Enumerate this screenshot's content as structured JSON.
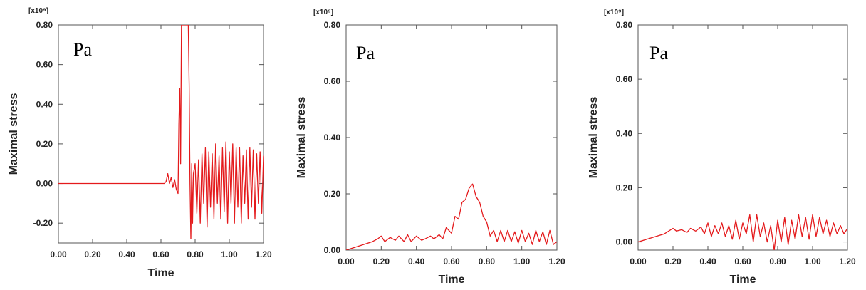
{
  "chart_data": [
    {
      "type": "line",
      "xlabel": "Time",
      "ylabel": "Maximal stress",
      "unit_annotation": "Pa",
      "multiplier": "[x10⁹]",
      "xlim": [
        0,
        1.2
      ],
      "ylim": [
        -0.3,
        0.8
      ],
      "xticks": [
        "0.00",
        "0.20",
        "0.40",
        "0.60",
        "0.80",
        "1.00",
        "1.20"
      ],
      "yticks": [
        "-0.20",
        "0.00",
        "0.20",
        "0.40",
        "0.60",
        "0.80"
      ],
      "grid": false,
      "series": [
        {
          "color": "#e41a1c",
          "x": [
            0.0,
            0.1,
            0.2,
            0.3,
            0.4,
            0.5,
            0.6,
            0.62,
            0.63,
            0.64,
            0.65,
            0.66,
            0.67,
            0.68,
            0.69,
            0.7,
            0.705,
            0.71,
            0.715,
            0.72,
            0.725,
            0.73,
            0.735,
            0.74,
            0.745,
            0.75,
            0.755,
            0.76,
            0.765,
            0.77,
            0.775,
            0.78,
            0.785,
            0.79,
            0.8,
            0.81,
            0.82,
            0.83,
            0.84,
            0.85,
            0.86,
            0.87,
            0.88,
            0.89,
            0.9,
            0.91,
            0.92,
            0.93,
            0.94,
            0.95,
            0.96,
            0.97,
            0.98,
            0.99,
            1.0,
            1.01,
            1.02,
            1.03,
            1.04,
            1.05,
            1.06,
            1.07,
            1.08,
            1.09,
            1.1,
            1.11,
            1.12,
            1.13,
            1.14,
            1.15,
            1.16,
            1.17,
            1.18,
            1.19,
            1.2
          ],
          "y": [
            0.0,
            0.0,
            0.0,
            0.0,
            0.0,
            0.0,
            0.0,
            0.0,
            0.01,
            0.05,
            0.0,
            0.03,
            -0.02,
            0.02,
            -0.03,
            -0.05,
            0.3,
            0.48,
            0.1,
            0.8,
            0.8,
            0.8,
            0.8,
            0.8,
            0.8,
            0.8,
            0.8,
            0.8,
            0.5,
            0.0,
            -0.28,
            0.1,
            -0.2,
            0.05,
            0.1,
            -0.15,
            0.12,
            -0.2,
            0.15,
            -0.1,
            0.18,
            -0.22,
            0.16,
            -0.12,
            0.15,
            -0.18,
            0.2,
            -0.1,
            0.14,
            -0.18,
            0.18,
            -0.14,
            0.21,
            -0.2,
            0.16,
            -0.1,
            0.2,
            -0.2,
            0.18,
            -0.12,
            0.18,
            -0.2,
            0.14,
            -0.1,
            0.17,
            -0.18,
            0.18,
            -0.12,
            0.17,
            -0.18,
            0.15,
            -0.1,
            0.16,
            -0.15,
            0.14
          ]
        }
      ]
    },
    {
      "type": "line",
      "xlabel": "Time",
      "ylabel": "Maximal stress",
      "unit_annotation": "Pa",
      "multiplier": "[x10⁹]",
      "xlim": [
        0,
        1.2
      ],
      "ylim": [
        0,
        0.8
      ],
      "xticks": [
        "0.00",
        "0.20",
        "0.40",
        "0.60",
        "0.80",
        "1.00",
        "1.20"
      ],
      "yticks": [
        "0.00",
        "0.20",
        "0.40",
        "0.60",
        "0.80"
      ],
      "grid": false,
      "series": [
        {
          "color": "#e41a1c",
          "x": [
            0.0,
            0.05,
            0.1,
            0.15,
            0.18,
            0.2,
            0.22,
            0.25,
            0.28,
            0.3,
            0.33,
            0.35,
            0.37,
            0.4,
            0.43,
            0.45,
            0.48,
            0.5,
            0.53,
            0.55,
            0.57,
            0.6,
            0.62,
            0.64,
            0.66,
            0.68,
            0.7,
            0.72,
            0.74,
            0.76,
            0.78,
            0.8,
            0.82,
            0.84,
            0.86,
            0.88,
            0.9,
            0.92,
            0.94,
            0.96,
            0.98,
            1.0,
            1.02,
            1.04,
            1.06,
            1.08,
            1.1,
            1.12,
            1.14,
            1.16,
            1.18,
            1.2
          ],
          "y": [
            0.0,
            0.01,
            0.02,
            0.03,
            0.04,
            0.05,
            0.03,
            0.045,
            0.035,
            0.05,
            0.03,
            0.055,
            0.03,
            0.05,
            0.035,
            0.04,
            0.05,
            0.04,
            0.055,
            0.04,
            0.08,
            0.06,
            0.12,
            0.11,
            0.17,
            0.18,
            0.22,
            0.235,
            0.19,
            0.17,
            0.12,
            0.1,
            0.05,
            0.07,
            0.03,
            0.07,
            0.03,
            0.07,
            0.03,
            0.065,
            0.025,
            0.07,
            0.03,
            0.06,
            0.02,
            0.07,
            0.03,
            0.065,
            0.02,
            0.07,
            0.02,
            0.03
          ]
        }
      ]
    },
    {
      "type": "line",
      "xlabel": "Time",
      "ylabel": "Maximal stress",
      "unit_annotation": "Pa",
      "multiplier": "[x10⁹]",
      "xlim": [
        0,
        1.2
      ],
      "ylim": [
        -0.03,
        0.8
      ],
      "xticks": [
        "0.00",
        "0.20",
        "0.40",
        "0.60",
        "0.80",
        "1.00",
        "1.20"
      ],
      "yticks": [
        "0.00",
        "0.20",
        "0.40",
        "0.60",
        "0.80"
      ],
      "grid": false,
      "series": [
        {
          "color": "#e41a1c",
          "x": [
            0.0,
            0.05,
            0.1,
            0.15,
            0.2,
            0.22,
            0.25,
            0.28,
            0.3,
            0.33,
            0.36,
            0.38,
            0.4,
            0.42,
            0.44,
            0.46,
            0.48,
            0.5,
            0.52,
            0.54,
            0.56,
            0.58,
            0.6,
            0.62,
            0.64,
            0.66,
            0.68,
            0.7,
            0.72,
            0.74,
            0.76,
            0.78,
            0.8,
            0.82,
            0.84,
            0.86,
            0.88,
            0.9,
            0.92,
            0.94,
            0.96,
            0.98,
            1.0,
            1.02,
            1.04,
            1.06,
            1.08,
            1.1,
            1.12,
            1.14,
            1.16,
            1.18,
            1.2
          ],
          "y": [
            0.0,
            0.01,
            0.02,
            0.03,
            0.05,
            0.04,
            0.045,
            0.035,
            0.05,
            0.04,
            0.055,
            0.03,
            0.07,
            0.02,
            0.06,
            0.03,
            0.07,
            0.02,
            0.06,
            0.01,
            0.08,
            0.01,
            0.07,
            0.03,
            0.1,
            0.0,
            0.1,
            0.02,
            0.07,
            0.0,
            0.06,
            -0.03,
            0.08,
            0.0,
            0.09,
            -0.01,
            0.08,
            0.01,
            0.1,
            0.02,
            0.09,
            0.01,
            0.1,
            0.02,
            0.09,
            0.03,
            0.08,
            0.02,
            0.07,
            0.03,
            0.06,
            0.03,
            0.05
          ]
        }
      ]
    }
  ]
}
